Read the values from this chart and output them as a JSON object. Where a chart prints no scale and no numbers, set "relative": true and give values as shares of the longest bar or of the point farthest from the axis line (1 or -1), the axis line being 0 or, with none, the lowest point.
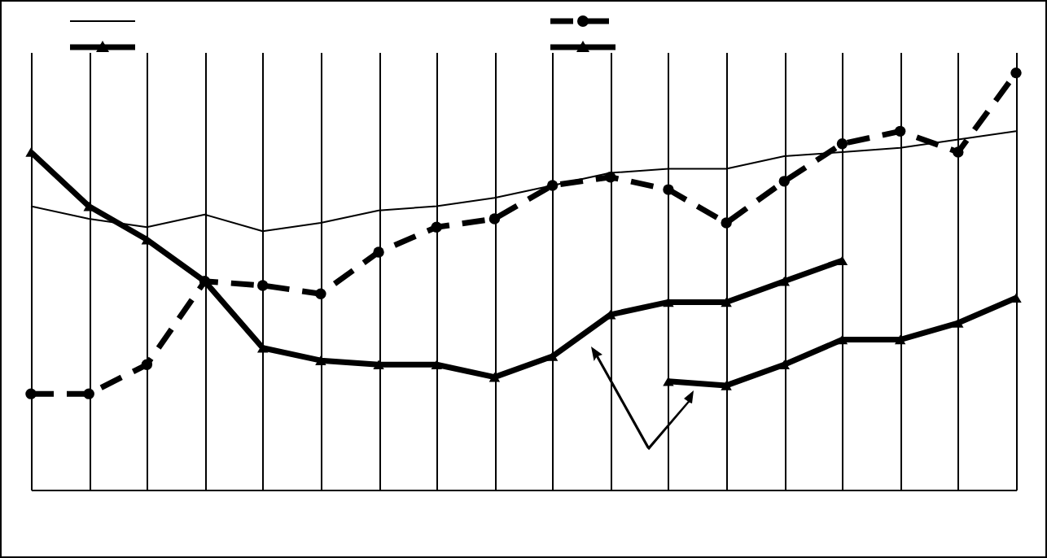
{
  "chart_data": {
    "type": "line",
    "relative": true,
    "categories": [
      null,
      null,
      null,
      null,
      null,
      null,
      null,
      null,
      null,
      null,
      null,
      null,
      null,
      null,
      null,
      null,
      null,
      null
    ],
    "grid": "x",
    "series": [
      {
        "color": "#000000",
        "marker": "none",
        "line_style": "solid",
        "values": [
          0.68,
          0.65,
          0.63,
          0.66,
          0.62,
          0.64,
          0.67,
          0.68,
          0.7,
          0.73,
          0.76,
          0.77,
          0.77,
          0.8,
          0.81,
          0.82,
          0.84,
          0.86
        ]
      },
      {
        "color": "#000000",
        "marker": "circle",
        "line_style": "dashed",
        "values": [
          0.23,
          0.23,
          0.3,
          0.5,
          0.49,
          0.47,
          0.57,
          0.63,
          0.65,
          0.73,
          0.75,
          0.72,
          0.64,
          0.74,
          0.83,
          0.86,
          0.81,
          1
        ]
      },
      {
        "color": "#000000",
        "marker": "triangle",
        "line_style": "solid",
        "values": [
          0.81,
          0.68,
          0.6,
          0.5,
          0.34,
          0.31,
          0.3,
          0.3,
          0.27,
          0.32,
          0.42,
          0.45,
          0.45,
          0.5,
          0.55,
          null,
          null,
          null
        ]
      },
      {
        "color": "#000000",
        "marker": "triangle",
        "line_style": "solid",
        "values": [
          null,
          null,
          null,
          null,
          null,
          null,
          null,
          null,
          null,
          null,
          null,
          0.26,
          0.25,
          0.3,
          0.36,
          0.36,
          0.4,
          0.46
        ]
      }
    ]
  }
}
